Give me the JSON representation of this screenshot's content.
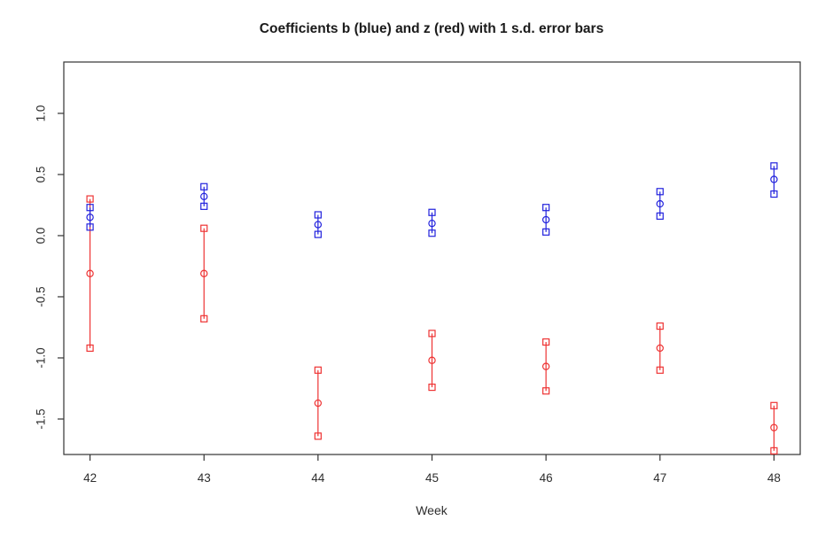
{
  "chart_data": {
    "type": "scatter",
    "title": "Coefficients b (blue) and z (red) with 1 s.d. error bars",
    "xlabel": "Week",
    "ylabel": "",
    "x": [
      42,
      43,
      44,
      45,
      46,
      47,
      48
    ],
    "xlim": [
      41.77,
      48.23
    ],
    "ylim": [
      -1.79,
      1.42
    ],
    "yticks": [
      1.0,
      0.5,
      0.0,
      -0.5,
      -1.0,
      -1.5
    ],
    "grid": false,
    "legend_position": "none",
    "marker_style": "open squares at mean plus/minus 1 s.d., open circle at mean, vertical connecting line",
    "series": [
      {
        "name": "z",
        "label": "z (red)",
        "color": "#ee3333",
        "mean": [
          -0.31,
          -0.31,
          -1.37,
          -1.02,
          -1.07,
          -0.92,
          -1.57
        ],
        "upper": [
          0.3,
          0.06,
          -1.1,
          -0.8,
          -0.87,
          -0.74,
          -1.39
        ],
        "lower": [
          -0.92,
          -0.68,
          -1.64,
          -1.24,
          -1.27,
          -1.1,
          -1.76
        ]
      },
      {
        "name": "b",
        "label": "b (blue)",
        "color": "#2222dd",
        "mean": [
          0.15,
          0.32,
          0.09,
          0.1,
          0.13,
          0.26,
          0.46
        ],
        "upper": [
          0.23,
          0.4,
          0.17,
          0.19,
          0.23,
          0.36,
          0.57
        ],
        "lower": [
          0.07,
          0.24,
          0.01,
          0.02,
          0.03,
          0.16,
          0.34
        ]
      }
    ]
  }
}
